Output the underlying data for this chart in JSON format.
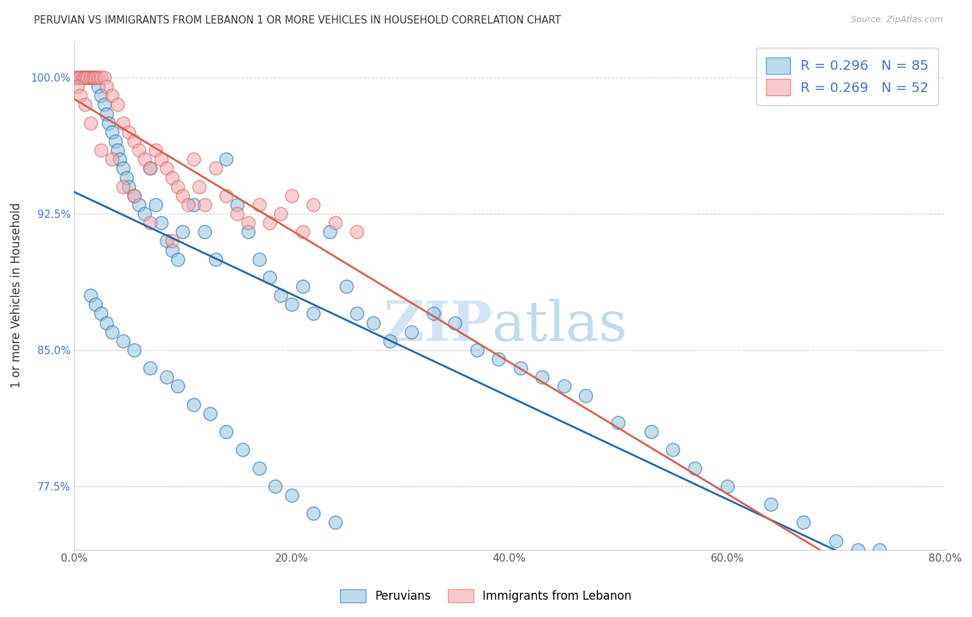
{
  "title": "PERUVIAN VS IMMIGRANTS FROM LEBANON 1 OR MORE VEHICLES IN HOUSEHOLD CORRELATION CHART",
  "source": "Source: ZipAtlas.com",
  "ylabel_label": "1 or more Vehicles in Household",
  "legend_blue_label": "Peruvians",
  "legend_pink_label": "Immigrants from Lebanon",
  "R_blue": 0.296,
  "N_blue": 85,
  "R_pink": 0.269,
  "N_pink": 52,
  "blue_color": "#92c5de",
  "pink_color": "#f4a7b2",
  "trendline_blue": "#2166ac",
  "trendline_pink": "#d6604d",
  "watermark_zip": "ZIP",
  "watermark_atlas": "atlas",
  "xlim": [
    0,
    80
  ],
  "ylim": [
    74,
    102
  ],
  "xticks": [
    0,
    20,
    40,
    60,
    80
  ],
  "yticks": [
    100.0,
    92.5,
    85.0,
    77.5
  ],
  "xtick_labels": [
    "0.0%",
    "20.0%",
    "40.0%",
    "60.0%",
    "80.0%"
  ],
  "ytick_labels": [
    "100.0%",
    "92.5%",
    "85.0%",
    "77.5%"
  ],
  "blue_x": [
    0.3,
    0.5,
    0.8,
    1.0,
    1.2,
    1.5,
    1.8,
    2.0,
    2.2,
    2.5,
    2.8,
    3.0,
    3.2,
    3.5,
    3.8,
    4.0,
    4.2,
    4.5,
    4.8,
    5.0,
    5.5,
    6.0,
    6.5,
    7.0,
    7.5,
    8.0,
    8.5,
    9.0,
    9.5,
    10.0,
    11.0,
    12.0,
    13.0,
    14.0,
    15.0,
    16.0,
    17.0,
    18.0,
    19.0,
    20.0,
    21.0,
    22.0,
    23.5,
    25.0,
    26.0,
    27.5,
    29.0,
    31.0,
    33.0,
    35.0,
    37.0,
    39.0,
    41.0,
    43.0,
    45.0,
    47.0,
    50.0,
    53.0,
    55.0,
    57.0,
    60.0,
    64.0,
    67.0,
    70.0,
    72.0,
    74.0,
    1.5,
    2.0,
    2.5,
    3.0,
    3.5,
    4.5,
    5.5,
    7.0,
    8.5,
    9.5,
    11.0,
    12.5,
    14.0,
    15.5,
    17.0,
    18.5,
    20.0,
    22.0,
    24.0
  ],
  "blue_y": [
    100.0,
    100.0,
    100.0,
    100.0,
    100.0,
    100.0,
    100.0,
    100.0,
    99.5,
    99.0,
    98.5,
    98.0,
    97.5,
    97.0,
    96.5,
    96.0,
    95.5,
    95.0,
    94.5,
    94.0,
    93.5,
    93.0,
    92.5,
    95.0,
    93.0,
    92.0,
    91.0,
    90.5,
    90.0,
    91.5,
    93.0,
    91.5,
    90.0,
    95.5,
    93.0,
    91.5,
    90.0,
    89.0,
    88.0,
    87.5,
    88.5,
    87.0,
    91.5,
    88.5,
    87.0,
    86.5,
    85.5,
    86.0,
    87.0,
    86.5,
    85.0,
    84.5,
    84.0,
    83.5,
    83.0,
    82.5,
    81.0,
    80.5,
    79.5,
    78.5,
    77.5,
    76.5,
    75.5,
    74.5,
    74.0,
    74.0,
    88.0,
    87.5,
    87.0,
    86.5,
    86.0,
    85.5,
    85.0,
    84.0,
    83.5,
    83.0,
    82.0,
    81.5,
    80.5,
    79.5,
    78.5,
    77.5,
    77.0,
    76.0,
    75.5
  ],
  "pink_x": [
    0.2,
    0.5,
    0.8,
    1.0,
    1.2,
    1.5,
    1.8,
    2.0,
    2.2,
    2.5,
    2.8,
    3.0,
    3.5,
    4.0,
    4.5,
    5.0,
    5.5,
    6.0,
    6.5,
    7.0,
    7.5,
    8.0,
    8.5,
    9.0,
    9.5,
    10.0,
    10.5,
    11.0,
    11.5,
    12.0,
    13.0,
    14.0,
    15.0,
    16.0,
    17.0,
    18.0,
    19.0,
    20.0,
    21.0,
    22.0,
    24.0,
    26.0,
    0.3,
    0.6,
    1.0,
    1.5,
    2.5,
    3.5,
    4.5,
    5.5,
    7.0,
    9.0
  ],
  "pink_y": [
    100.0,
    100.0,
    100.0,
    100.0,
    100.0,
    100.0,
    100.0,
    100.0,
    100.0,
    100.0,
    100.0,
    99.5,
    99.0,
    98.5,
    97.5,
    97.0,
    96.5,
    96.0,
    95.5,
    95.0,
    96.0,
    95.5,
    95.0,
    94.5,
    94.0,
    93.5,
    93.0,
    95.5,
    94.0,
    93.0,
    95.0,
    93.5,
    92.5,
    92.0,
    93.0,
    92.0,
    92.5,
    93.5,
    91.5,
    93.0,
    92.0,
    91.5,
    99.5,
    99.0,
    98.5,
    97.5,
    96.0,
    95.5,
    94.0,
    93.5,
    92.0,
    91.0
  ]
}
